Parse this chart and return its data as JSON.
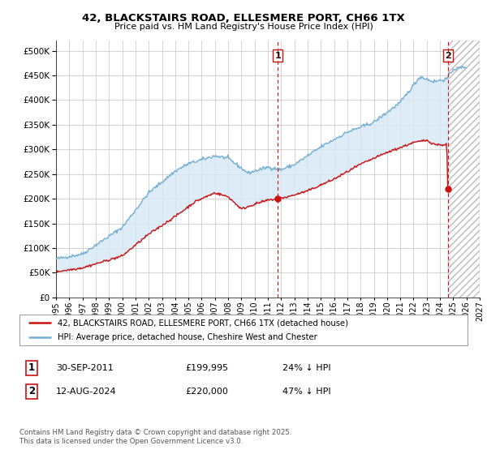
{
  "title": "42, BLACKSTAIRS ROAD, ELLESMERE PORT, CH66 1TX",
  "subtitle": "Price paid vs. HM Land Registry's House Price Index (HPI)",
  "ylim": [
    0,
    520000
  ],
  "yticks": [
    0,
    50000,
    100000,
    150000,
    200000,
    250000,
    300000,
    350000,
    400000,
    450000,
    500000
  ],
  "xlim_start": 1995.0,
  "xlim_end": 2027.0,
  "hpi_color": "#74afd3",
  "price_color": "#cc1111",
  "dashed_line_color": "#cc1111",
  "fill_color": "#d6e8f5",
  "hatch_color": "#cccccc",
  "marker1_x": 2011.75,
  "marker1_y": 199995,
  "marker2_x": 2024.62,
  "marker2_y": 220000,
  "label1_date": "30-SEP-2011",
  "label1_price": "£199,995",
  "label1_hpi": "24% ↓ HPI",
  "label2_date": "12-AUG-2024",
  "label2_price": "£220,000",
  "label2_hpi": "47% ↓ HPI",
  "legend_line1": "42, BLACKSTAIRS ROAD, ELLESMERE PORT, CH66 1TX (detached house)",
  "legend_line2": "HPI: Average price, detached house, Cheshire West and Chester",
  "footer": "Contains HM Land Registry data © Crown copyright and database right 2025.\nThis data is licensed under the Open Government Licence v3.0.",
  "annotation1": "1",
  "annotation2": "2",
  "bg_color": "#ffffff",
  "grid_color": "#cccccc"
}
